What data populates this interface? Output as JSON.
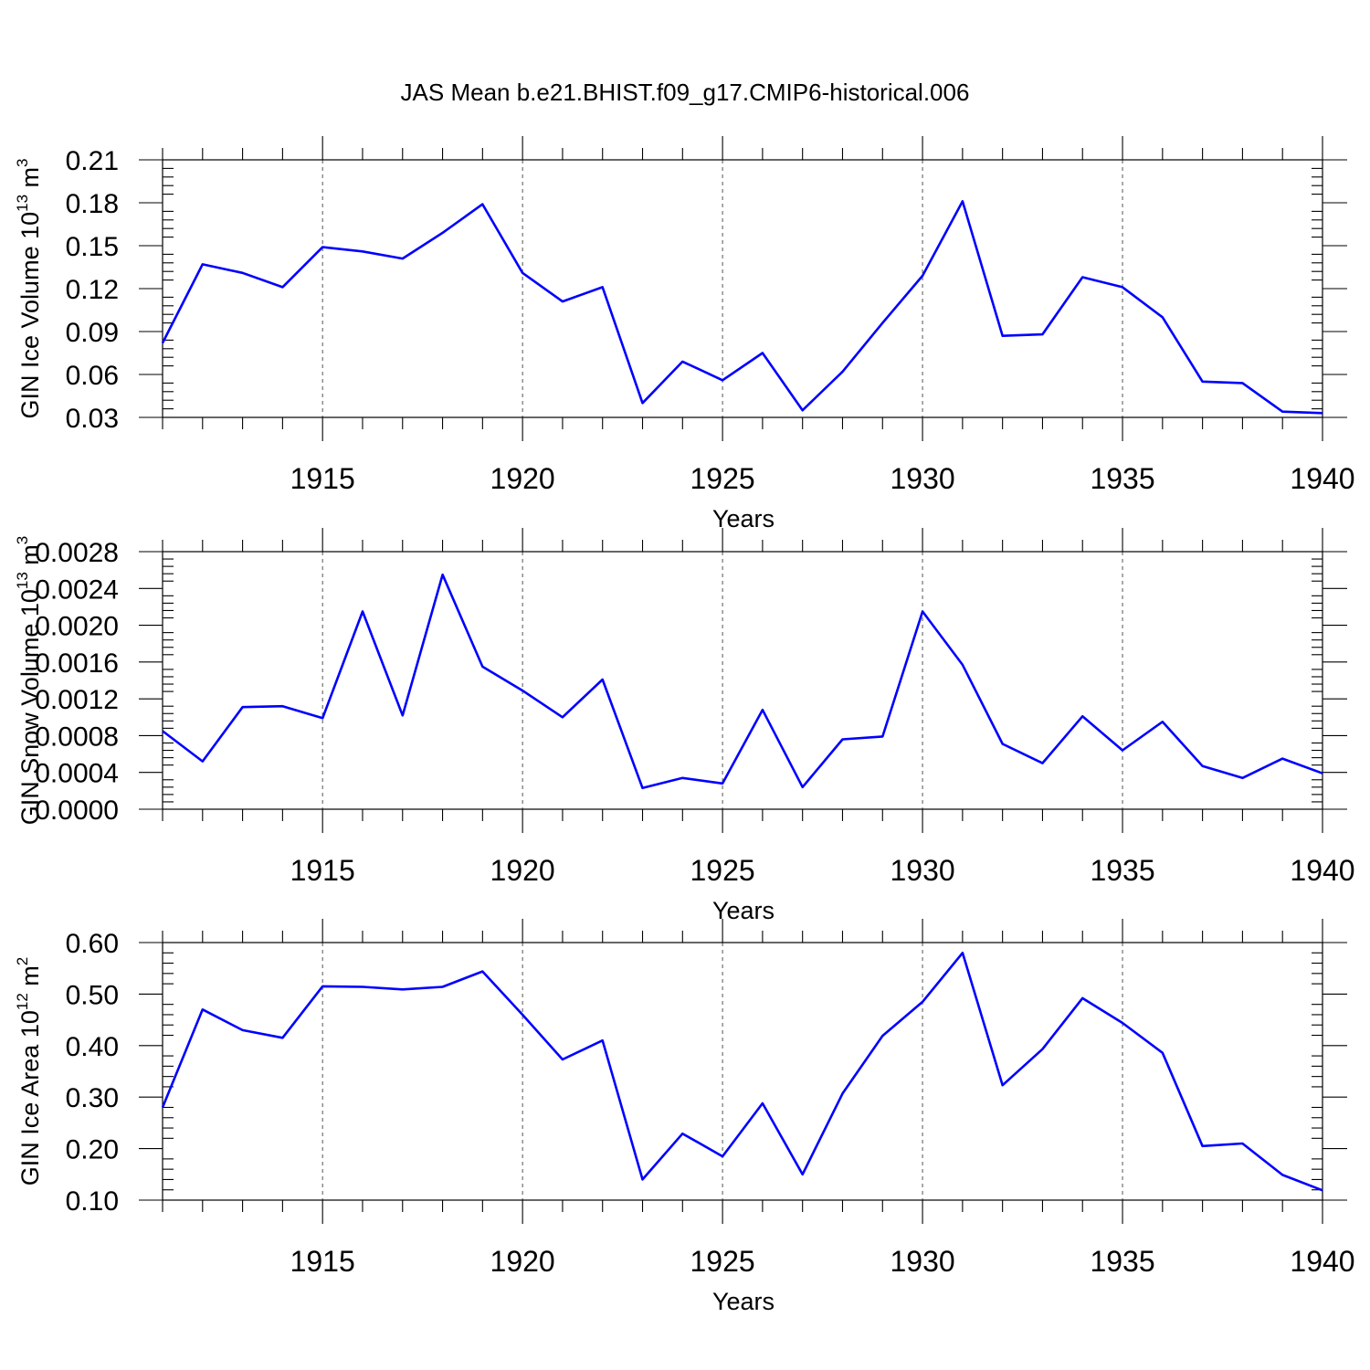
{
  "title": "JAS Mean b.e21.BHIST.f09_g17.CMIP6-historical.006",
  "colors": {
    "line": "#0000ff",
    "axis": "#000000",
    "grid": "#555555"
  },
  "chart_data": [
    {
      "type": "line",
      "xlabel": "Years",
      "ylabel": "GIN Ice Volume 10^13 m^3",
      "ylabel_parts": {
        "main": "GIN Ice Volume 10",
        "exp1": "13",
        "unit": " m",
        "exp2": "3"
      },
      "xlim": [
        1911,
        1940
      ],
      "ylim": [
        0.03,
        0.21
      ],
      "x_ticks": [
        1915,
        1920,
        1925,
        1930,
        1935,
        1940
      ],
      "x_tick_labels": [
        "1915",
        "1920",
        "1925",
        "1930",
        "1935",
        "1940"
      ],
      "y_ticks": [
        0.03,
        0.06,
        0.09,
        0.12,
        0.15,
        0.18,
        0.21
      ],
      "y_tick_labels": [
        "0.03",
        "0.06",
        "0.09",
        "0.12",
        "0.15",
        "0.18",
        "0.21"
      ],
      "x": [
        1911,
        1912,
        1913,
        1914,
        1915,
        1916,
        1917,
        1918,
        1919,
        1920,
        1921,
        1922,
        1923,
        1924,
        1925,
        1926,
        1927,
        1928,
        1929,
        1930,
        1931,
        1932,
        1933,
        1934,
        1935,
        1936,
        1937,
        1938,
        1939,
        1940
      ],
      "series": [
        {
          "values": [
            0.082,
            0.137,
            0.131,
            0.121,
            0.149,
            0.146,
            0.141,
            0.159,
            0.179,
            0.131,
            0.111,
            0.121,
            0.04,
            0.069,
            0.056,
            0.075,
            0.035,
            0.062,
            0.096,
            0.129,
            0.181,
            0.087,
            0.088,
            0.128,
            0.121,
            0.1,
            0.055,
            0.054,
            0.034,
            0.033
          ]
        }
      ]
    },
    {
      "type": "line",
      "xlabel": "Years",
      "ylabel": "GIN Snow Volume 10^13 m^3",
      "ylabel_parts": {
        "main": "GIN Snow Volume 10",
        "exp1": "13",
        "unit": " m",
        "exp2": "3"
      },
      "xlim": [
        1911,
        1940
      ],
      "ylim": [
        0.0,
        0.0028
      ],
      "x_ticks": [
        1915,
        1920,
        1925,
        1930,
        1935,
        1940
      ],
      "x_tick_labels": [
        "1915",
        "1920",
        "1925",
        "1930",
        "1935",
        "1940"
      ],
      "y_ticks": [
        0.0,
        0.0004,
        0.0008,
        0.0012,
        0.0016,
        0.002,
        0.0024,
        0.0028
      ],
      "y_tick_labels": [
        "0.0000",
        "0.0004",
        "0.0008",
        "0.0012",
        "0.0016",
        "0.0020",
        "0.0024",
        "0.0028"
      ],
      "x": [
        1911,
        1912,
        1913,
        1914,
        1915,
        1916,
        1917,
        1918,
        1919,
        1920,
        1921,
        1922,
        1923,
        1924,
        1925,
        1926,
        1927,
        1928,
        1929,
        1930,
        1931,
        1932,
        1933,
        1934,
        1935,
        1936,
        1937,
        1938,
        1939,
        1940
      ],
      "series": [
        {
          "values": [
            0.00085,
            0.00052,
            0.00111,
            0.00112,
            0.00099,
            0.00215,
            0.00102,
            0.00255,
            0.00155,
            0.00129,
            0.001,
            0.00141,
            0.00023,
            0.00034,
            0.00028,
            0.00108,
            0.00024,
            0.00076,
            0.00079,
            0.00215,
            0.00157,
            0.00071,
            0.0005,
            0.00101,
            0.00064,
            0.00095,
            0.00047,
            0.00034,
            0.00055,
            0.00039
          ]
        }
      ]
    },
    {
      "type": "line",
      "xlabel": "Years",
      "ylabel": "GIN Ice Area 10^12 m^2",
      "ylabel_parts": {
        "main": "GIN Ice Area 10",
        "exp1": "12",
        "unit": " m",
        "exp2": "2"
      },
      "xlim": [
        1911,
        1940
      ],
      "ylim": [
        0.1,
        0.6
      ],
      "x_ticks": [
        1915,
        1920,
        1925,
        1930,
        1935,
        1940
      ],
      "x_tick_labels": [
        "1915",
        "1920",
        "1925",
        "1930",
        "1935",
        "1940"
      ],
      "y_ticks": [
        0.1,
        0.2,
        0.3,
        0.4,
        0.5,
        0.6
      ],
      "y_tick_labels": [
        "0.10",
        "0.20",
        "0.30",
        "0.40",
        "0.50",
        "0.60"
      ],
      "x": [
        1911,
        1912,
        1913,
        1914,
        1915,
        1916,
        1917,
        1918,
        1919,
        1920,
        1921,
        1922,
        1923,
        1924,
        1925,
        1926,
        1927,
        1928,
        1929,
        1930,
        1931,
        1932,
        1933,
        1934,
        1935,
        1936,
        1937,
        1938,
        1939,
        1940
      ],
      "series": [
        {
          "values": [
            0.28,
            0.47,
            0.43,
            0.415,
            0.515,
            0.514,
            0.509,
            0.514,
            0.544,
            0.46,
            0.373,
            0.41,
            0.14,
            0.229,
            0.185,
            0.288,
            0.15,
            0.307,
            0.419,
            0.485,
            0.58,
            0.323,
            0.393,
            0.492,
            0.444,
            0.386,
            0.205,
            0.21,
            0.149,
            0.119
          ]
        }
      ]
    }
  ]
}
